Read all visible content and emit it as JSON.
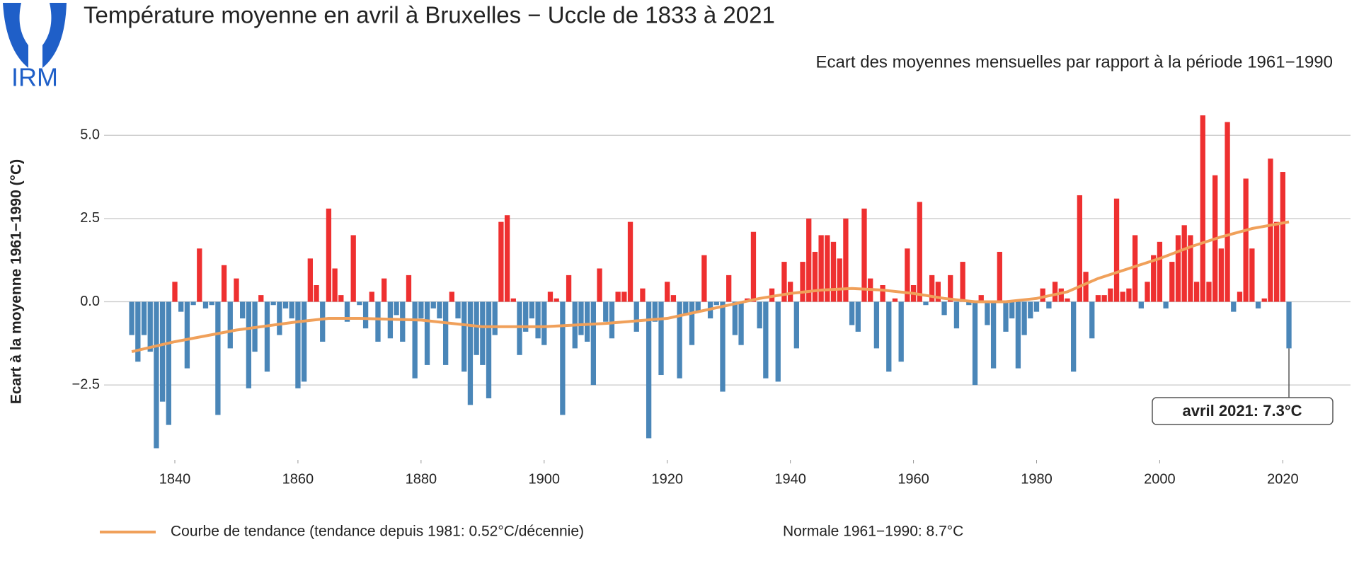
{
  "chart_data": {
    "type": "bar",
    "logo": "IRM",
    "title": "Température moyenne en avril à Bruxelles − Uccle de 1833 à 2021",
    "subtitle": "Ecart des moyennes mensuelles par rapport à la période 1961−1990",
    "y_label": "Ecart à la moyenne 1961−1990 (°C)",
    "annotation": "avril 2021: 7.3°C",
    "normal_note": "Normale 1961−1990: 8.7°C",
    "positive_color": "#ee3030",
    "negative_color": "#4a86b8",
    "grid": true,
    "xlim": [
      1828.5,
      2031
    ],
    "xticks": [
      1840,
      1860,
      1880,
      1900,
      1920,
      1940,
      1960,
      1980,
      2000,
      2020
    ],
    "ylim": [
      -4.75,
      5.75
    ],
    "yticks": [
      {
        "value": -2.5,
        "label": "−2.5"
      },
      {
        "value": 0,
        "label": "0.0"
      },
      2.5,
      {
        "value": 5,
        "label": "5.0"
      }
    ],
    "x": [
      1833,
      1834,
      1835,
      1836,
      1837,
      1838,
      1839,
      1840,
      1841,
      1842,
      1843,
      1844,
      1845,
      1846,
      1847,
      1848,
      1849,
      1850,
      1851,
      1852,
      1853,
      1854,
      1855,
      1856,
      1857,
      1858,
      1859,
      1860,
      1861,
      1862,
      1863,
      1864,
      1865,
      1866,
      1867,
      1868,
      1869,
      1870,
      1871,
      1872,
      1873,
      1874,
      1875,
      1876,
      1877,
      1878,
      1879,
      1880,
      1881,
      1882,
      1883,
      1884,
      1885,
      1886,
      1887,
      1888,
      1889,
      1890,
      1891,
      1892,
      1893,
      1894,
      1895,
      1896,
      1897,
      1898,
      1899,
      1900,
      1901,
      1902,
      1903,
      1904,
      1905,
      1906,
      1907,
      1908,
      1909,
      1910,
      1911,
      1912,
      1913,
      1914,
      1915,
      1916,
      1917,
      1918,
      1919,
      1920,
      1921,
      1922,
      1923,
      1924,
      1925,
      1926,
      1927,
      1928,
      1929,
      1930,
      1931,
      1932,
      1933,
      1934,
      1935,
      1936,
      1937,
      1938,
      1939,
      1940,
      1941,
      1942,
      1943,
      1944,
      1945,
      1946,
      1947,
      1948,
      1949,
      1950,
      1951,
      1952,
      1953,
      1954,
      1955,
      1956,
      1957,
      1958,
      1959,
      1960,
      1961,
      1962,
      1963,
      1964,
      1965,
      1966,
      1967,
      1968,
      1969,
      1970,
      1971,
      1972,
      1973,
      1974,
      1975,
      1976,
      1977,
      1978,
      1979,
      1980,
      1981,
      1982,
      1983,
      1984,
      1985,
      1986,
      1987,
      1988,
      1989,
      1990,
      1991,
      1992,
      1993,
      1994,
      1995,
      1996,
      1997,
      1998,
      1999,
      2000,
      2001,
      2002,
      2003,
      2004,
      2005,
      2006,
      2007,
      2008,
      2009,
      2010,
      2011,
      2012,
      2013,
      2014,
      2015,
      2016,
      2017,
      2018,
      2019,
      2020,
      2021
    ],
    "values": [
      -1.0,
      -1.8,
      -1.0,
      -1.5,
      -4.4,
      -3.0,
      -3.7,
      0.6,
      -0.3,
      -2.0,
      -0.1,
      1.6,
      -0.2,
      -0.1,
      -3.4,
      1.1,
      -1.4,
      0.7,
      -0.5,
      -2.6,
      -1.5,
      0.2,
      -2.1,
      -0.1,
      -1.0,
      -0.2,
      -0.5,
      -2.6,
      -2.4,
      1.3,
      0.5,
      -1.2,
      2.8,
      1.0,
      0.2,
      -0.6,
      2.0,
      -0.1,
      -0.8,
      0.3,
      -1.2,
      0.7,
      -1.1,
      -0.4,
      -1.2,
      0.8,
      -2.3,
      -0.5,
      -1.9,
      -0.2,
      -0.5,
      -1.9,
      0.3,
      -0.5,
      -2.1,
      -3.1,
      -1.6,
      -1.9,
      -2.9,
      -1.0,
      2.4,
      2.6,
      0.1,
      -1.6,
      -0.9,
      -0.5,
      -1.1,
      -1.3,
      0.3,
      0.1,
      -3.4,
      0.8,
      -1.4,
      -1.0,
      -1.2,
      -2.5,
      1.0,
      -0.6,
      -1.1,
      0.3,
      0.3,
      2.4,
      -0.9,
      0.4,
      -4.1,
      -0.6,
      -2.2,
      0.6,
      0.2,
      -2.3,
      -0.4,
      -1.3,
      -0.3,
      1.4,
      -0.5,
      -0.1,
      -2.7,
      0.8,
      -1.0,
      -1.3,
      0.1,
      2.1,
      -0.8,
      -2.3,
      0.4,
      -2.4,
      1.2,
      0.6,
      -1.4,
      1.2,
      2.5,
      1.5,
      2.0,
      2.0,
      1.8,
      1.3,
      2.5,
      -0.7,
      -0.9,
      2.8,
      0.7,
      -1.4,
      0.5,
      -2.1,
      0.1,
      -1.8,
      1.6,
      0.5,
      3.0,
      -0.1,
      0.8,
      0.6,
      -0.4,
      0.8,
      -0.8,
      1.2,
      -0.1,
      -2.5,
      0.2,
      -0.7,
      -2.0,
      1.5,
      -0.9,
      -0.5,
      -2.0,
      -1.0,
      -0.5,
      -0.3,
      0.4,
      -0.2,
      0.6,
      0.4,
      0.1,
      -2.1,
      3.2,
      0.9,
      -1.1,
      0.2,
      0.2,
      0.4,
      3.1,
      0.3,
      0.4,
      2.0,
      -0.2,
      0.6,
      1.4,
      1.8,
      -0.2,
      1.2,
      2.0,
      2.3,
      2.0,
      0.6,
      5.6,
      0.6,
      3.8,
      1.6,
      5.4,
      -0.3,
      0.3,
      3.7,
      1.6,
      -0.2,
      0.1,
      4.3,
      2.4,
      3.9,
      -1.4
    ],
    "trend": {
      "name": "Courbe de tendance (tendance depuis 1981: 0.52°C/décennie)",
      "color": "#f0a05a",
      "x": [
        1833,
        1840,
        1850,
        1860,
        1865,
        1870,
        1880,
        1890,
        1900,
        1910,
        1920,
        1925,
        1930,
        1935,
        1940,
        1945,
        1950,
        1955,
        1960,
        1965,
        1970,
        1975,
        1980,
        1985,
        1990,
        1995,
        2000,
        2005,
        2010,
        2015,
        2021
      ],
      "values": [
        -1.5,
        -1.2,
        -0.85,
        -0.6,
        -0.5,
        -0.5,
        -0.55,
        -0.75,
        -0.75,
        -0.65,
        -0.5,
        -0.3,
        -0.1,
        0.1,
        0.25,
        0.35,
        0.4,
        0.35,
        0.25,
        0.1,
        0.0,
        0.0,
        0.1,
        0.3,
        0.7,
        1.0,
        1.3,
        1.65,
        1.95,
        2.2,
        2.4
      ]
    }
  }
}
